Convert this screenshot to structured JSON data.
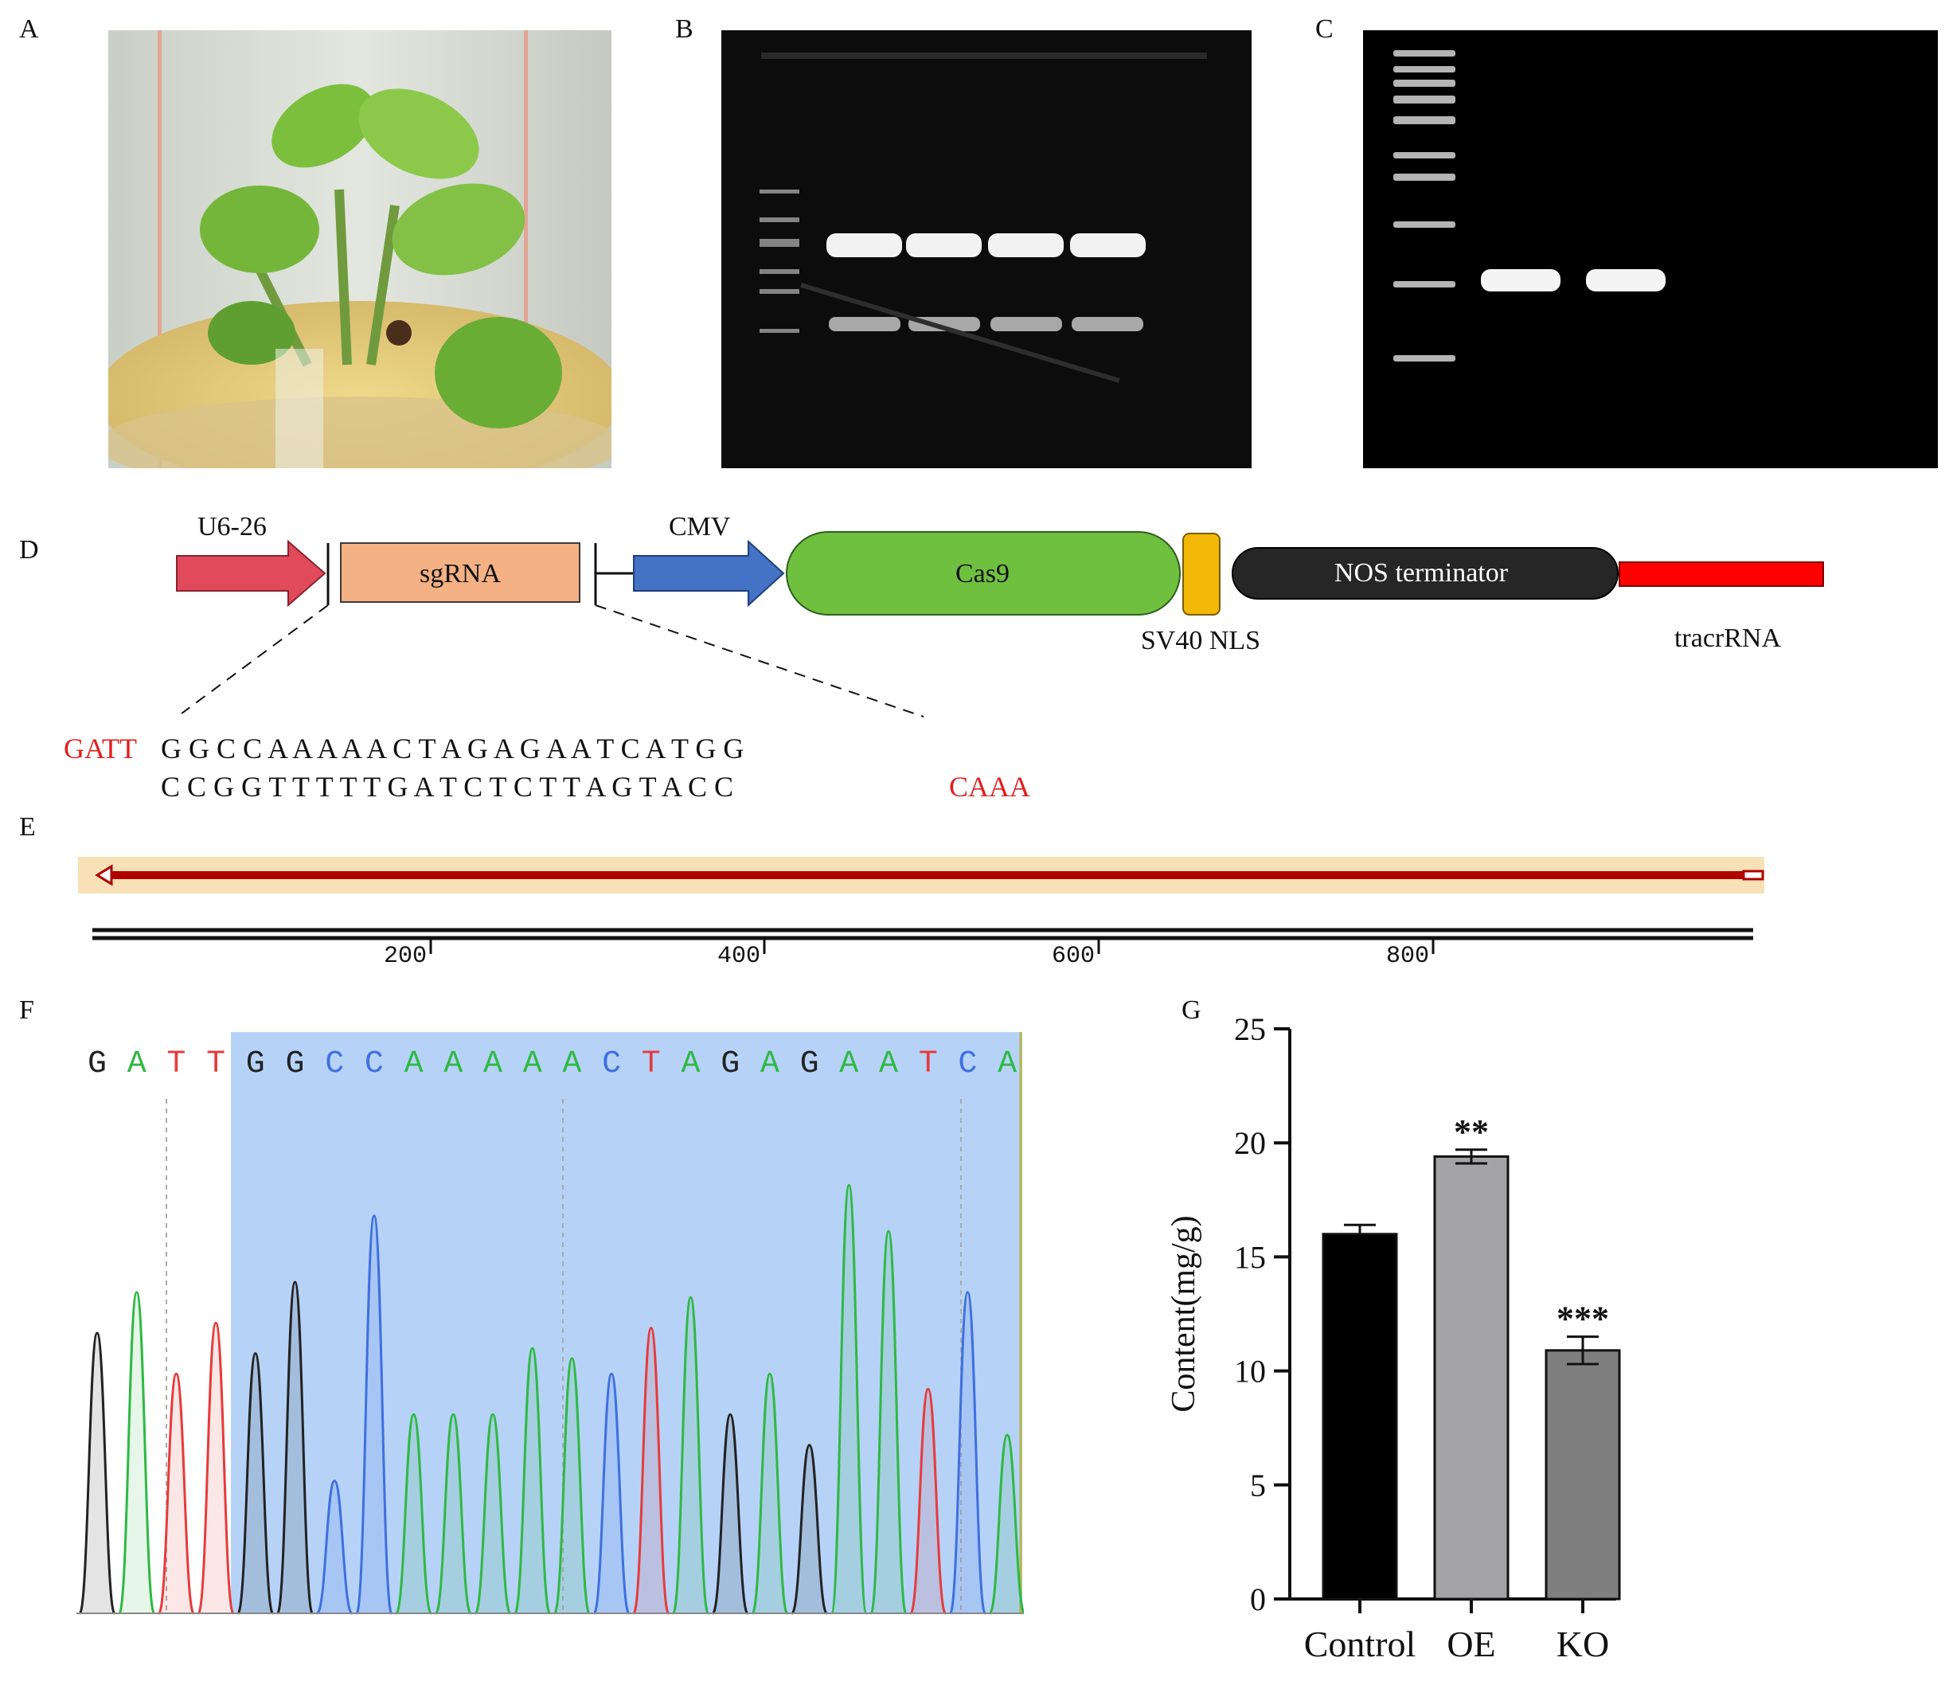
{
  "panel_labels": {
    "a": "A",
    "b": "B",
    "c": "C",
    "d": "D",
    "e": "E",
    "f": "F",
    "g": "G"
  },
  "construct": {
    "promoter1": "U6-26",
    "sgrna": "sgRNA",
    "promoter2": "CMV",
    "cas9": "Cas9",
    "nls": "SV40 NLS",
    "terminator": "NOS terminator",
    "tracr": "tracrRNA",
    "seq_top_overhang": "GATT",
    "seq_top": "G G C C A A A A A C T A G A G A A T C A T G G",
    "seq_bottom": "C C G G T T T T T G A T C T C T T A G T A C C",
    "seq_bottom_overhang": "CAAA"
  },
  "alignment": {
    "ticks": [
      "200",
      "400",
      "600",
      "800"
    ]
  },
  "chromatogram": {
    "bases": [
      "G",
      "A",
      "T",
      "T",
      "G",
      "G",
      "C",
      "C",
      "A",
      "A",
      "A",
      "A",
      "A",
      "C",
      "T",
      "A",
      "G",
      "A",
      "G",
      "A",
      "A",
      "T",
      "C",
      "A"
    ],
    "base_colors": {
      "G": "#222222",
      "A": "#2fb844",
      "T": "#e53c3c",
      "C": "#3f6fe0"
    }
  },
  "chart_data": {
    "type": "bar",
    "categories": [
      "Control",
      "OE",
      "KO"
    ],
    "values": [
      16.0,
      19.4,
      10.9
    ],
    "errors": [
      0.4,
      0.3,
      0.6
    ],
    "significance": [
      "",
      "**",
      "***"
    ],
    "ylabel": "Content(mg/g)",
    "ylim": [
      0,
      25
    ],
    "yticks": [
      "0",
      "5",
      "10",
      "15",
      "20",
      "25"
    ],
    "bar_colors": [
      "#000000",
      "#a4a4a6",
      "#7f7f7f"
    ]
  }
}
